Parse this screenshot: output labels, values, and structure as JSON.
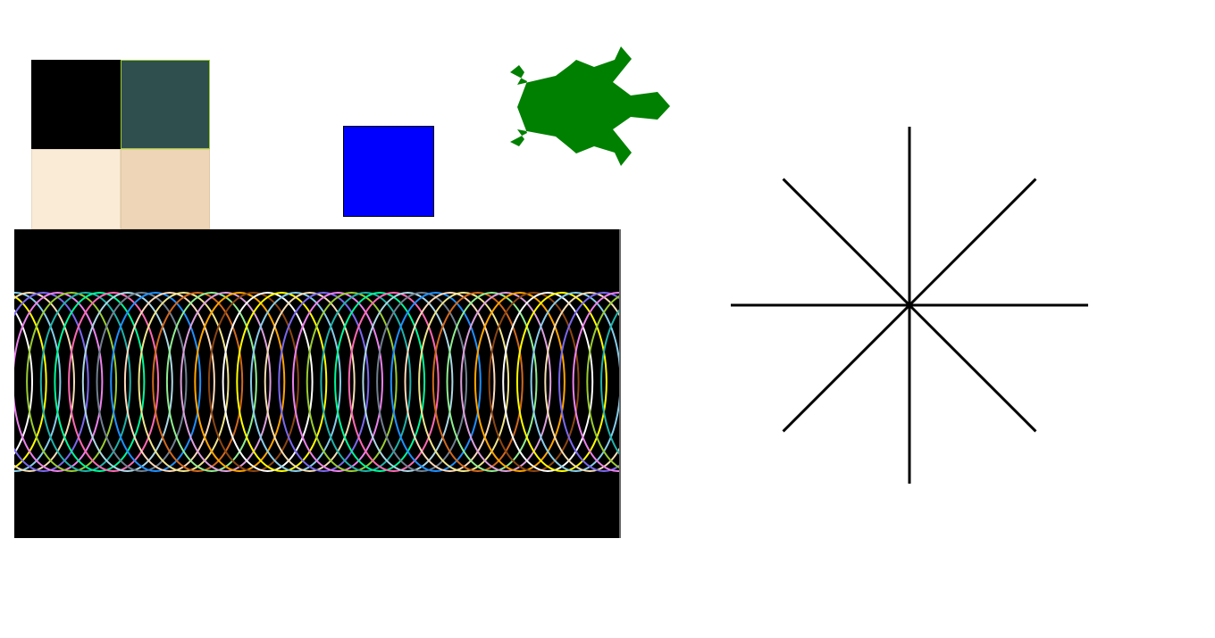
{
  "scene": {
    "background": "#ffffff",
    "swatches": [
      {
        "name": "black",
        "color": "#000000",
        "border": "#000000"
      },
      {
        "name": "darkslategray",
        "color": "#2f4f4f",
        "border": "#9acd32"
      },
      {
        "name": "linen",
        "color": "#faebd7",
        "border": "#e8d8c0"
      },
      {
        "name": "wheat",
        "color": "#eed5b7",
        "border": "#e2c8a5"
      }
    ],
    "blue_square": {
      "fill": "#0000ff",
      "stroke": "#000000"
    },
    "turtle": {
      "icon": "turtle-icon",
      "color": "#008000"
    },
    "coil": {
      "background": "#000000",
      "loop_count": 48,
      "colors": [
        "#ffffff",
        "#f5deb3",
        "#9acd32",
        "#ff69b4",
        "#1e90ff",
        "#d2691e",
        "#ffa500",
        "#ffff00",
        "#7b68ee",
        "#20b2aa",
        "#add8e6",
        "#ffdab9",
        "#90ee90",
        "#8b4513",
        "#87ceeb",
        "#ee82ee",
        "#00fa9a",
        "#708090",
        "#f0e68c",
        "#dda0dd"
      ]
    },
    "star": {
      "icon": "asterisk-icon",
      "color": "#000000",
      "spokes": 8
    }
  }
}
